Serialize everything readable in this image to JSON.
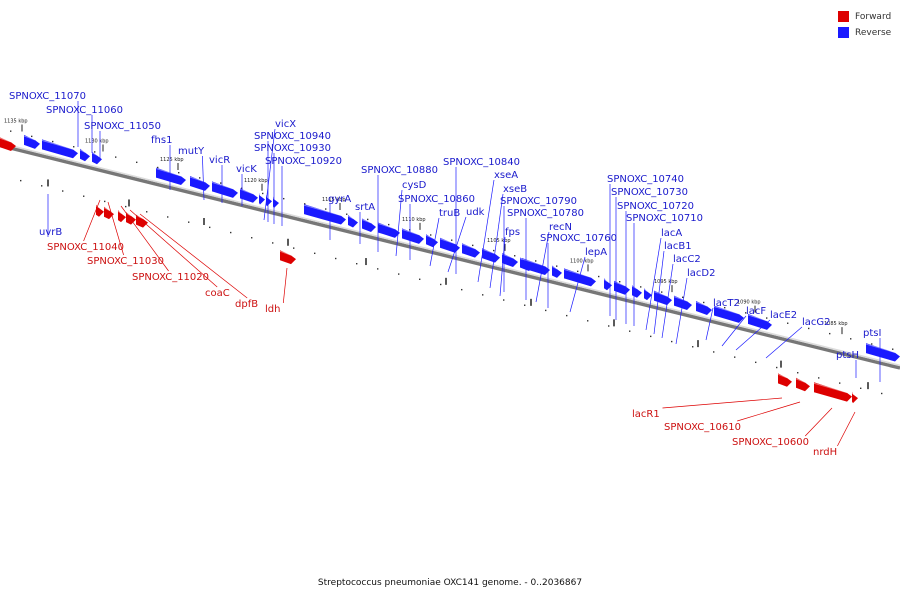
{
  "colors": {
    "forward": "#dd0000",
    "reverse": "#1a1aff",
    "backbone": "#9a9a9a"
  },
  "legend": [
    {
      "label": "Forward",
      "color": "#dd0000"
    },
    {
      "label": "Reverse",
      "color": "#1a1aff"
    }
  ],
  "scale_ticks": [
    {
      "kbp": 1135,
      "label": "1135 kbp"
    },
    {
      "kbp": 1130,
      "label": "1130 kbp"
    },
    {
      "kbp": 1125,
      "label": "1125 kbp"
    },
    {
      "kbp": 1120,
      "label": "1120 kbp"
    },
    {
      "kbp": 1115,
      "label": "1115 kbp"
    },
    {
      "kbp": 1110,
      "label": "1110 kbp"
    },
    {
      "kbp": 1105,
      "label": "1105 kbp"
    },
    {
      "kbp": 1100,
      "label": "1100 kbp"
    },
    {
      "kbp": 1095,
      "label": "1095 kbp"
    },
    {
      "kbp": 1090,
      "label": "1090 kbp"
    },
    {
      "kbp": 1085,
      "label": "1085 kbp"
    }
  ],
  "genes_reverse": [
    "SPNOXC_11070",
    "SPNOXC_11060",
    "SPNOXC_11050",
    "uvrB",
    "fhs1",
    "mutY",
    "vicR",
    "vicK",
    "vicX",
    "SPNOXC_10940",
    "SPNOXC_10930",
    "SPNOXC_10920",
    "gyrA",
    "srtA",
    "SPNOXC_10880",
    "cysD",
    "SPNOXC_10860",
    "truB",
    "udk",
    "SPNOXC_10840",
    "xseA",
    "xseB",
    "SPNOXC_10790",
    "fps",
    "SPNOXC_10780",
    "recN",
    "SPNOXC_10760",
    "lepA",
    "SPNOXC_10740",
    "SPNOXC_10730",
    "SPNOXC_10720",
    "SPNOXC_10710",
    "lacA",
    "lacB1",
    "lacC2",
    "lacD2",
    "lacT2",
    "lacF",
    "lacE2",
    "lacG2",
    "ptsH",
    "ptsI"
  ],
  "genes_forward": [
    "SPNOXC_11040",
    "SPNOXC_11030",
    "SPNOXC_11020",
    "coaC",
    "dpfB",
    "ldh",
    "lacR1",
    "SPNOXC_10610",
    "SPNOXC_10600",
    "nrdH"
  ],
  "caption": "Streptococcus pneumoniae OXC141 genome. - 0..2036867"
}
